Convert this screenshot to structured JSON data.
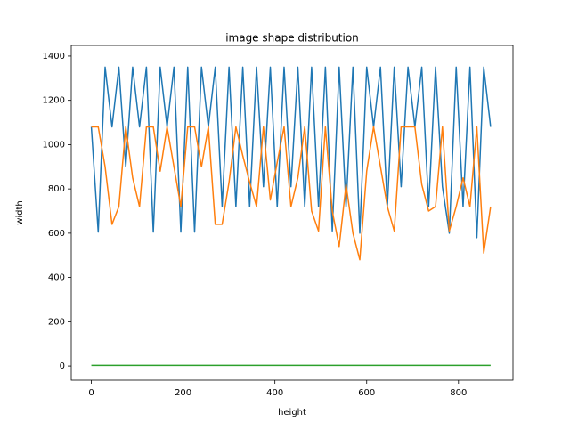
{
  "chart_data": {
    "type": "line",
    "title": "image shape distribution",
    "x_label": "height",
    "y_label": "width",
    "x": [
      0,
      15,
      30,
      45,
      60,
      75,
      90,
      105,
      120,
      135,
      150,
      165,
      180,
      195,
      210,
      225,
      240,
      255,
      270,
      285,
      300,
      315,
      330,
      345,
      360,
      375,
      390,
      405,
      420,
      435,
      450,
      465,
      480,
      495,
      510,
      525,
      540,
      555,
      570,
      585,
      600,
      615,
      630,
      645,
      660,
      675,
      690,
      705,
      720,
      735,
      750,
      765,
      780,
      795,
      810,
      825,
      840,
      855,
      870
    ],
    "series": [
      {
        "color": "#1f77b4",
        "values": [
          1080,
          605,
          1350,
          1080,
          1350,
          900,
          1350,
          1080,
          1350,
          605,
          1350,
          1080,
          1350,
          605,
          1350,
          605,
          1350,
          1080,
          1350,
          720,
          1350,
          720,
          1350,
          720,
          1350,
          810,
          1350,
          720,
          1350,
          810,
          1350,
          720,
          1350,
          720,
          1350,
          610,
          1350,
          720,
          1350,
          600,
          1350,
          1080,
          1350,
          720,
          1350,
          810,
          1350,
          1080,
          1350,
          720,
          1350,
          810,
          600,
          1350,
          720,
          1350,
          580,
          1350,
          1080
        ]
      },
      {
        "color": "#ff7f0e",
        "values": [
          1080,
          1080,
          900,
          640,
          720,
          1080,
          850,
          720,
          1080,
          1080,
          880,
          1080,
          900,
          720,
          1080,
          1080,
          900,
          1080,
          640,
          640,
          830,
          1080,
          950,
          830,
          720,
          1080,
          750,
          920,
          1080,
          720,
          850,
          1080,
          700,
          610,
          1080,
          700,
          540,
          820,
          600,
          480,
          880,
          1080,
          900,
          720,
          610,
          1080,
          1080,
          1080,
          820,
          700,
          720,
          1080,
          610,
          720,
          850,
          720,
          1080,
          510,
          720
        ]
      },
      {
        "color": "#2ca02c",
        "values": [
          3,
          3,
          3,
          3,
          3,
          3,
          3,
          3,
          3,
          3,
          3,
          3,
          3,
          3,
          3,
          3,
          3,
          3,
          3,
          3,
          3,
          3,
          3,
          3,
          3,
          3,
          3,
          3,
          3,
          3,
          3,
          3,
          3,
          3,
          3,
          3,
          3,
          3,
          3,
          3,
          3,
          3,
          3,
          3,
          3,
          3,
          3,
          3,
          3,
          3,
          3,
          3,
          3,
          3,
          3,
          3,
          3,
          3,
          3
        ]
      }
    ],
    "xlim": [
      -43.75,
      918.75
    ],
    "ylim": [
      -64,
      1448
    ],
    "xticks": [
      0,
      200,
      400,
      600,
      800
    ],
    "yticks": [
      0,
      200,
      400,
      600,
      800,
      1000,
      1200,
      1400
    ]
  }
}
